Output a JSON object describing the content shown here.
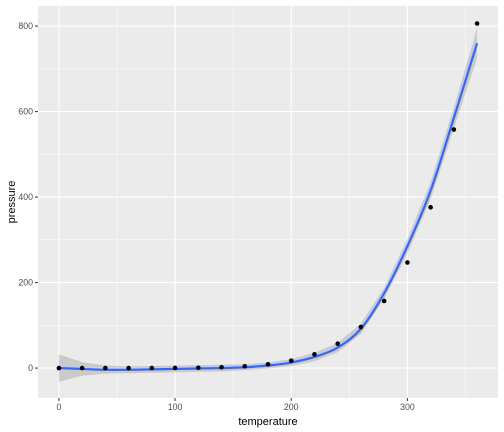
{
  "chart_data": {
    "type": "scatter",
    "xlabel": "temperature",
    "ylabel": "pressure",
    "xlim": [
      -18,
      378
    ],
    "ylim": [
      -70,
      847
    ],
    "x_ticks": [
      0,
      100,
      200,
      300
    ],
    "x_minor_ticks": [
      50,
      150,
      250,
      350
    ],
    "y_ticks": [
      0,
      200,
      400,
      600,
      800
    ],
    "y_minor_ticks": [
      100,
      300,
      500,
      700
    ],
    "grid": true,
    "points": {
      "x": [
        0,
        20,
        40,
        60,
        80,
        100,
        120,
        140,
        160,
        180,
        200,
        220,
        240,
        260,
        280,
        300,
        320,
        340,
        360
      ],
      "y": [
        0.0002,
        0.0012,
        0.006,
        0.03,
        0.09,
        0.27,
        0.75,
        1.85,
        4.2,
        8.8,
        17.3,
        32.1,
        57,
        96,
        157,
        247,
        376,
        558,
        806
      ]
    },
    "smooth": {
      "x": [
        0,
        20,
        40,
        60,
        80,
        100,
        120,
        140,
        160,
        180,
        200,
        220,
        240,
        260,
        280,
        300,
        320,
        340,
        360
      ],
      "y": [
        0,
        -2,
        -4,
        -4,
        -3,
        -2,
        -1,
        0,
        2,
        6,
        13,
        26,
        48,
        92,
        175,
        285,
        415,
        585,
        760
      ],
      "se_lower": [
        -32,
        -18,
        -13,
        -12,
        -11,
        -10,
        -9,
        -8,
        -5,
        -1,
        5,
        16,
        37,
        80,
        162,
        268,
        395,
        560,
        725
      ],
      "se_upper": [
        32,
        14,
        6,
        4,
        5,
        6,
        7,
        8,
        9,
        13,
        21,
        36,
        59,
        104,
        188,
        302,
        435,
        610,
        795
      ]
    },
    "colors": {
      "panel": "#ebebeb",
      "grid": "#ffffff",
      "points": "#000000",
      "line": "#3366ff",
      "ribbon": "#999999"
    }
  }
}
